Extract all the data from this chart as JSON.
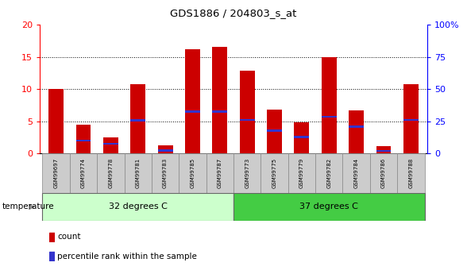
{
  "title": "GDS1886 / 204803_s_at",
  "samples": [
    "GSM99697",
    "GSM99774",
    "GSM99778",
    "GSM99781",
    "GSM99783",
    "GSM99785",
    "GSM99787",
    "GSM99773",
    "GSM99775",
    "GSM99779",
    "GSM99782",
    "GSM99784",
    "GSM99786",
    "GSM99788"
  ],
  "count_values": [
    10,
    4.5,
    2.5,
    10.8,
    1.2,
    16.2,
    16.5,
    12.8,
    6.8,
    4.8,
    15.0,
    6.7,
    1.1,
    10.8
  ],
  "percentile_values": [
    0,
    2.0,
    1.5,
    5.1,
    0.5,
    6.5,
    6.5,
    5.2,
    3.5,
    2.6,
    5.7,
    4.2,
    0.4,
    5.2
  ],
  "group1_label": "32 degrees C",
  "group2_label": "37 degrees C",
  "group1_count": 7,
  "group2_count": 7,
  "temperature_label": "temperature",
  "legend_count": "count",
  "legend_percentile": "percentile rank within the sample",
  "ylim_left": [
    0,
    20
  ],
  "ylim_right": [
    0,
    100
  ],
  "yticks_left": [
    0,
    5,
    10,
    15,
    20
  ],
  "yticks_right": [
    0,
    25,
    50,
    75,
    100
  ],
  "bar_color": "#cc0000",
  "marker_color": "#3333cc",
  "group1_bg": "#ccffcc",
  "group2_bg": "#44cc44",
  "tick_bg": "#cccccc",
  "bar_width": 0.55
}
